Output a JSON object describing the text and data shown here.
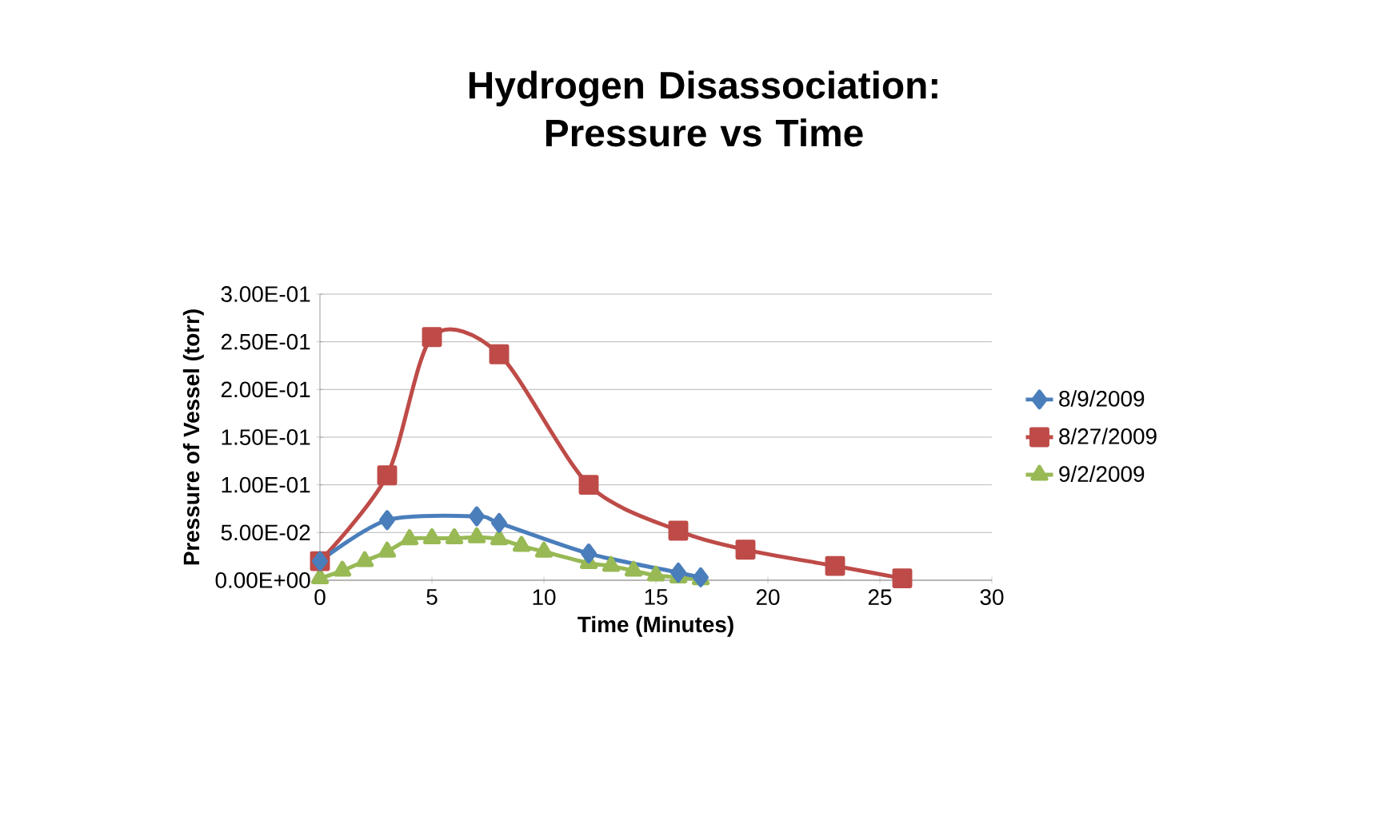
{
  "chart_data": {
    "type": "line",
    "title": "Hydrogen Disassociation: Pressure vs Time",
    "xlabel": "Time (Minutes)",
    "ylabel": "Pressure of Vessel (torr)",
    "xlim": [
      0,
      30
    ],
    "xticks": [
      0,
      5,
      10,
      15,
      20,
      25,
      30
    ],
    "ylim": [
      0,
      0.3
    ],
    "yticks": [
      {
        "value": 0,
        "label": "0.00E+00"
      },
      {
        "value": 0.05,
        "label": "5.00E-02"
      },
      {
        "value": 0.1,
        "label": "1.00E-01"
      },
      {
        "value": 0.15,
        "label": "1.50E-01"
      },
      {
        "value": 0.2,
        "label": "2.00E-01"
      },
      {
        "value": 0.25,
        "label": "2.50E-01"
      },
      {
        "value": 0.3,
        "label": "3.00E-01"
      }
    ],
    "grid": "y",
    "legend": "right",
    "line_style": "solid",
    "series": [
      {
        "name": "8/9/2009",
        "color": "#4a7ebb",
        "marker": "diamond",
        "x": [
          0,
          3,
          7,
          8,
          12,
          16,
          17
        ],
        "values": [
          0.02,
          0.063,
          0.067,
          0.06,
          0.028,
          0.008,
          0.003
        ]
      },
      {
        "name": "8/27/2009",
        "color": "#be4b48",
        "marker": "square",
        "x": [
          0,
          3,
          5,
          8,
          12,
          16,
          19,
          23,
          26
        ],
        "values": [
          0.02,
          0.11,
          0.255,
          0.237,
          0.1,
          0.052,
          0.032,
          0.015,
          0.002
        ]
      },
      {
        "name": "9/2/2009",
        "color": "#98b954",
        "marker": "triangle",
        "x": [
          0,
          1,
          2,
          3,
          4,
          5,
          6,
          7,
          8,
          9,
          10,
          12,
          13,
          14,
          15,
          16,
          17
        ],
        "values": [
          0.002,
          0.01,
          0.02,
          0.03,
          0.043,
          0.044,
          0.044,
          0.045,
          0.043,
          0.036,
          0.03,
          0.018,
          0.015,
          0.01,
          0.005,
          0.003,
          0.001
        ]
      }
    ]
  }
}
